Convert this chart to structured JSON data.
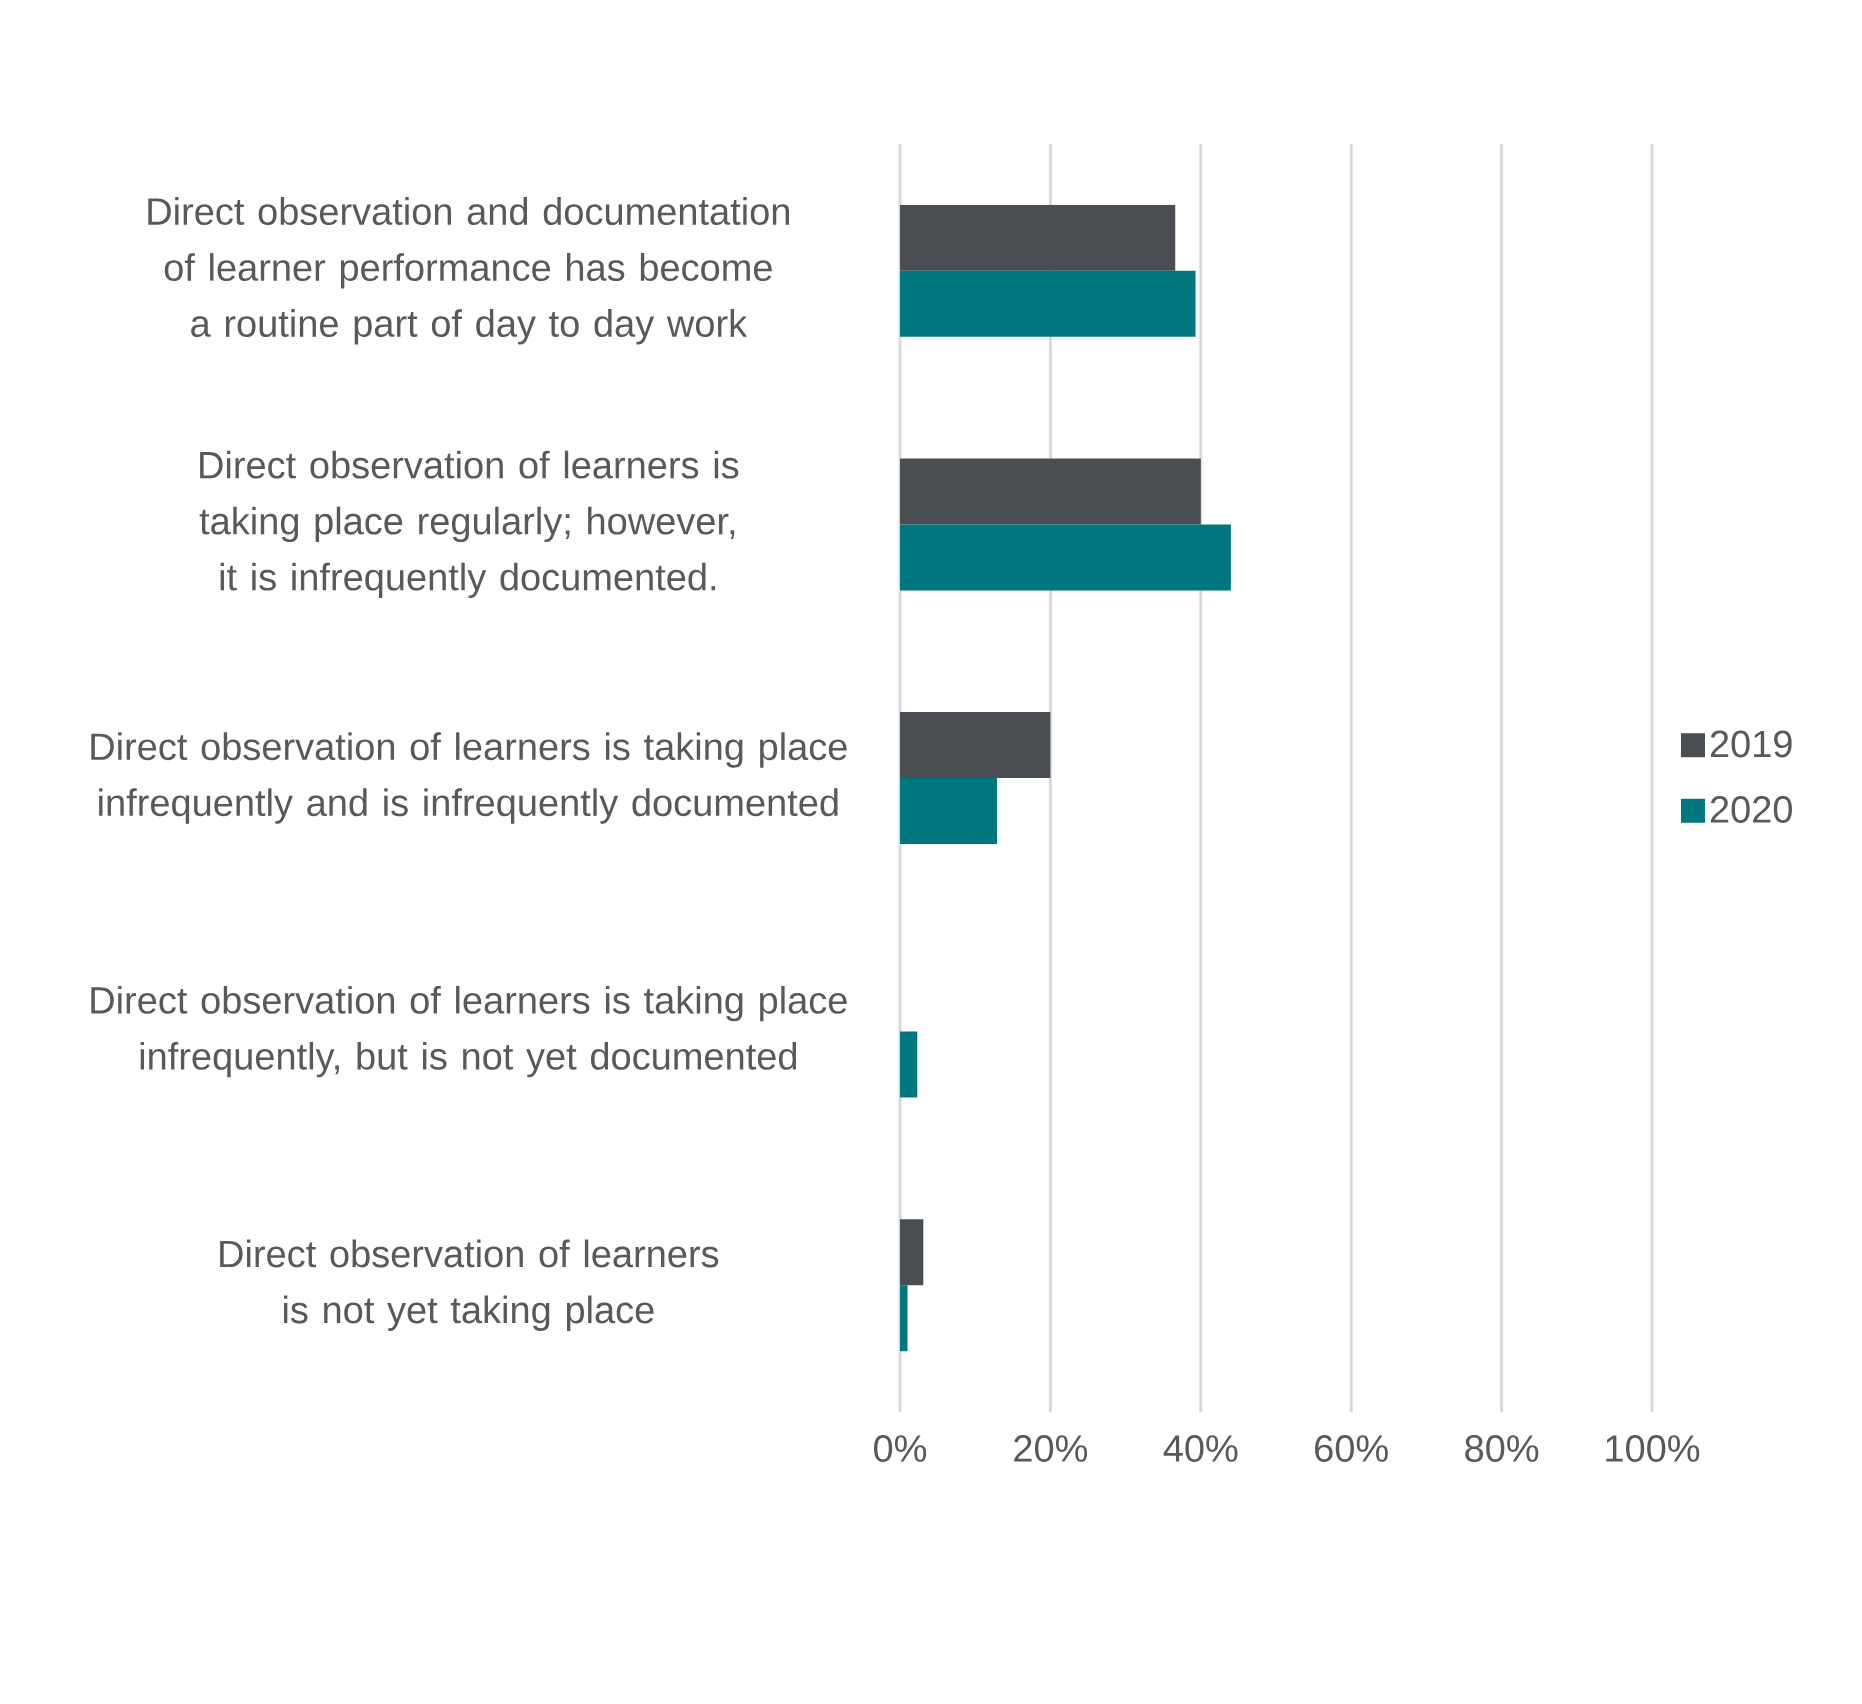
{
  "chart_data": {
    "type": "bar",
    "orientation": "horizontal",
    "categories": [
      "Direct observation and documentation of learner performance has become a routine part of day to day work",
      "Direct observation of learners is taking place regularly; however, it is infrequently documented.",
      "Direct observation of learners is taking place infrequently and is infrequently documented",
      "Direct observation of learners is taking place infrequently, but is not yet documented",
      "Direct observation of learners is not yet taking place"
    ],
    "series": [
      {
        "name": "2019",
        "color": "#4a4d52",
        "values": [
          36.6,
          40,
          20,
          null,
          3.1
        ]
      },
      {
        "name": "2020",
        "color": "#00767e",
        "values": [
          39.3,
          44,
          12.9,
          2.3,
          1.0
        ]
      }
    ],
    "xlim": [
      0,
      100
    ],
    "xticks": [
      {
        "value": 0,
        "label": "0%"
      },
      {
        "value": 20,
        "label": "20%"
      },
      {
        "value": 40,
        "label": "40%"
      },
      {
        "value": 60,
        "label": "60%"
      },
      {
        "value": 80,
        "label": "80%"
      },
      {
        "value": 100,
        "label": "100%"
      }
    ],
    "grid": "x",
    "legend": "right"
  }
}
